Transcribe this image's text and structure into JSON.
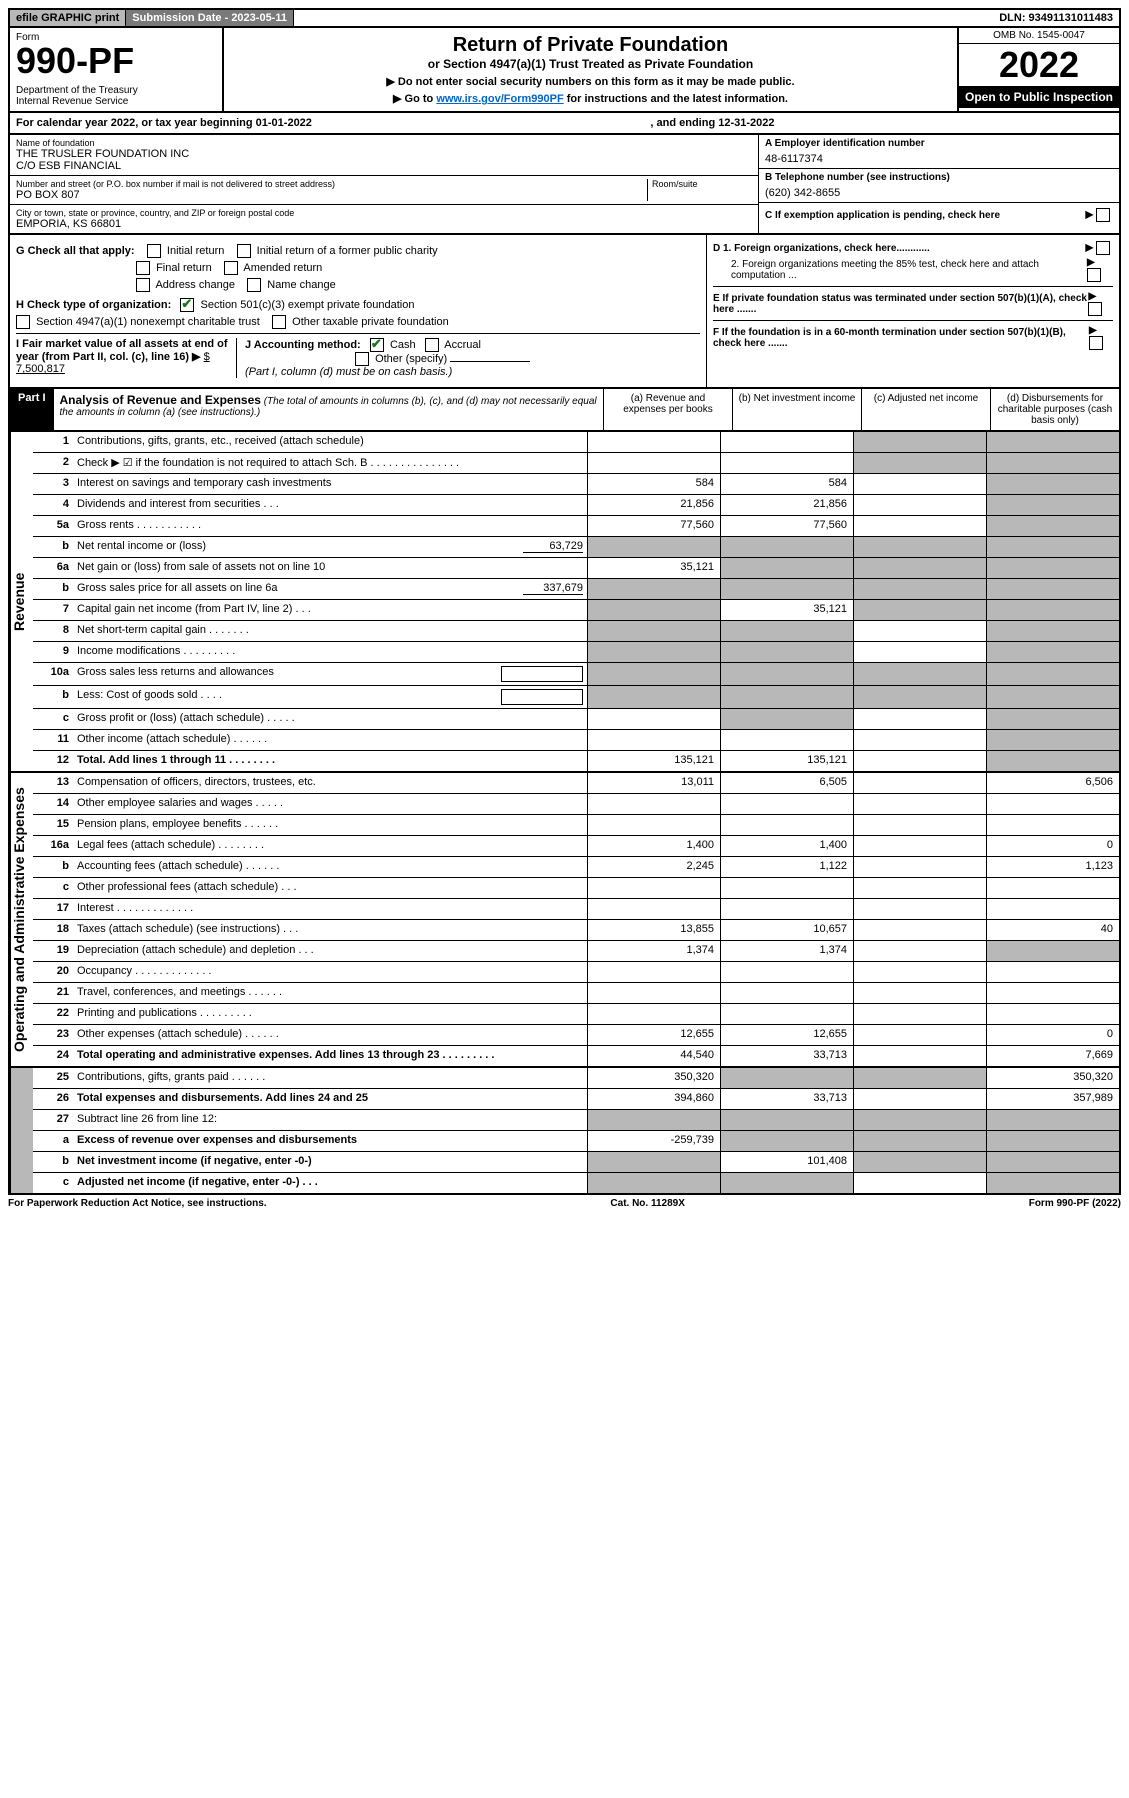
{
  "topbar": {
    "efile": "efile GRAPHIC print",
    "subdate_label": "Submission Date - 2023-05-11",
    "dln": "DLN: 93491131011483"
  },
  "header": {
    "form_label": "Form",
    "form_number": "990-PF",
    "dept": "Department of the Treasury\nInternal Revenue Service",
    "title": "Return of Private Foundation",
    "subtitle": "or Section 4947(a)(1) Trust Treated as Private Foundation",
    "note1": "▶ Do not enter social security numbers on this form as it may be made public.",
    "note2_pre": "▶ Go to ",
    "note2_link": "www.irs.gov/Form990PF",
    "note2_post": " for instructions and the latest information.",
    "omb": "OMB No. 1545-0047",
    "year": "2022",
    "inspection": "Open to Public Inspection"
  },
  "calyear": {
    "label": "For calendar year 2022, or tax year beginning 01-01-2022",
    "ending": ", and ending 12-31-2022"
  },
  "name": {
    "label": "Name of foundation",
    "val1": "THE TRUSLER FOUNDATION INC",
    "val2": "C/O ESB FINANCIAL",
    "addr_label": "Number and street (or P.O. box number if mail is not delivered to street address)",
    "addr_val": "PO BOX 807",
    "room_label": "Room/suite",
    "city_label": "City or town, state or province, country, and ZIP or foreign postal code",
    "city_val": "EMPORIA, KS  66801"
  },
  "right_fields": {
    "a_label": "A Employer identification number",
    "a_val": "48-6117374",
    "b_label": "B Telephone number (see instructions)",
    "b_val": "(620) 342-8655",
    "c_label": "C If exemption application is pending, check here",
    "d1": "D 1. Foreign organizations, check here............",
    "d2": "2. Foreign organizations meeting the 85% test, check here and attach computation ...",
    "e": "E  If private foundation status was terminated under section 507(b)(1)(A), check here .......",
    "f": "F  If the foundation is in a 60-month termination under section 507(b)(1)(B), check here ......."
  },
  "checks": {
    "g_label": "G Check all that apply:",
    "g_opts": [
      "Initial return",
      "Initial return of a former public charity",
      "Final return",
      "Amended return",
      "Address change",
      "Name change"
    ],
    "h_label": "H Check type of organization:",
    "h1": "Section 501(c)(3) exempt private foundation",
    "h2": "Section 4947(a)(1) nonexempt charitable trust",
    "h3": "Other taxable private foundation",
    "i_label": "I Fair market value of all assets at end of year (from Part II, col. (c), line 16) ▶",
    "i_val": "$  7,500,817",
    "j_label": "J Accounting method:",
    "j_cash": "Cash",
    "j_accrual": "Accrual",
    "j_other": "Other (specify)",
    "j_note": "(Part I, column (d) must be on cash basis.)"
  },
  "part1": {
    "label": "Part I",
    "title": "Analysis of Revenue and Expenses",
    "note": " (The total of amounts in columns (b), (c), and (d) may not necessarily equal the amounts in column (a) (see instructions).)",
    "col_a": "(a)    Revenue and expenses per books",
    "col_b": "(b)    Net investment income",
    "col_c": "(c)    Adjusted net income",
    "col_d": "(d)    Disbursements for charitable purposes (cash basis only)"
  },
  "sections": {
    "revenue": "Revenue",
    "expenses": "Operating and Administrative Expenses"
  },
  "lines": [
    {
      "n": "1",
      "d": "Contributions, gifts, grants, etc., received (attach schedule)",
      "a": "",
      "b": "",
      "c": "s",
      "dd": "s"
    },
    {
      "n": "2",
      "d": "Check ▶ ☑ if the foundation is not required to attach Sch. B    .   .   .   .   .   .   .   .   .   .   .   .   .   .   .",
      "a": "",
      "b": "",
      "c": "s",
      "dd": "s"
    },
    {
      "n": "3",
      "d": "Interest on savings and temporary cash investments",
      "a": "584",
      "b": "584",
      "c": "",
      "dd": "s"
    },
    {
      "n": "4",
      "d": "Dividends and interest from securities    .   .   .",
      "a": "21,856",
      "b": "21,856",
      "c": "",
      "dd": "s"
    },
    {
      "n": "5a",
      "d": "Gross rents    .   .   .   .   .   .   .   .   .   .   .",
      "a": "77,560",
      "b": "77,560",
      "c": "",
      "dd": "s"
    },
    {
      "n": "b",
      "d": "Net rental income or (loss)",
      "inline": "63,729",
      "a": "s",
      "b": "s",
      "c": "s",
      "dd": "s"
    },
    {
      "n": "6a",
      "d": "Net gain or (loss) from sale of assets not on line 10",
      "a": "35,121",
      "b": "s",
      "c": "s",
      "dd": "s"
    },
    {
      "n": "b",
      "d": "Gross sales price for all assets on line 6a",
      "inline": "337,679",
      "a": "s",
      "b": "s",
      "c": "s",
      "dd": "s"
    },
    {
      "n": "7",
      "d": "Capital gain net income (from Part IV, line 2)   .   .   .",
      "a": "s",
      "b": "35,121",
      "c": "s",
      "dd": "s"
    },
    {
      "n": "8",
      "d": "Net short-term capital gain   .   .   .   .   .   .   .",
      "a": "s",
      "b": "s",
      "c": "",
      "dd": "s"
    },
    {
      "n": "9",
      "d": "Income modifications   .   .   .   .   .   .   .   .   .",
      "a": "s",
      "b": "s",
      "c": "",
      "dd": "s"
    },
    {
      "n": "10a",
      "d": "Gross sales less returns and allowances",
      "box": true,
      "a": "s",
      "b": "s",
      "c": "s",
      "dd": "s"
    },
    {
      "n": "b",
      "d": "Less: Cost of goods sold    .   .   .   .",
      "box": true,
      "a": "s",
      "b": "s",
      "c": "s",
      "dd": "s"
    },
    {
      "n": "c",
      "d": "Gross profit or (loss) (attach schedule)    .   .   .   .   .",
      "a": "",
      "b": "s",
      "c": "",
      "dd": "s"
    },
    {
      "n": "11",
      "d": "Other income (attach schedule)    .   .   .   .   .   .",
      "a": "",
      "b": "",
      "c": "",
      "dd": "s"
    },
    {
      "n": "12",
      "d": "Total. Add lines 1 through 11    .   .   .   .   .   .   .   .",
      "bold": true,
      "a": "135,121",
      "b": "135,121",
      "c": "",
      "dd": "s"
    },
    {
      "n": "13",
      "d": "Compensation of officers, directors, trustees, etc.",
      "a": "13,011",
      "b": "6,505",
      "c": "",
      "dd": "6,506"
    },
    {
      "n": "14",
      "d": "Other employee salaries and wages    .   .   .   .   .",
      "a": "",
      "b": "",
      "c": "",
      "dd": ""
    },
    {
      "n": "15",
      "d": "Pension plans, employee benefits   .   .   .   .   .   .",
      "a": "",
      "b": "",
      "c": "",
      "dd": ""
    },
    {
      "n": "16a",
      "d": "Legal fees (attach schedule)  .   .   .   .   .   .   .   .",
      "a": "1,400",
      "b": "1,400",
      "c": "",
      "dd": "0"
    },
    {
      "n": "b",
      "d": "Accounting fees (attach schedule)  .   .   .   .   .   .",
      "a": "2,245",
      "b": "1,122",
      "c": "",
      "dd": "1,123"
    },
    {
      "n": "c",
      "d": "Other professional fees (attach schedule)    .   .   .",
      "a": "",
      "b": "",
      "c": "",
      "dd": ""
    },
    {
      "n": "17",
      "d": "Interest   .   .   .   .   .   .   .   .   .   .   .   .   .",
      "a": "",
      "b": "",
      "c": "",
      "dd": ""
    },
    {
      "n": "18",
      "d": "Taxes (attach schedule) (see instructions)    .   .   .",
      "a": "13,855",
      "b": "10,657",
      "c": "",
      "dd": "40"
    },
    {
      "n": "19",
      "d": "Depreciation (attach schedule) and depletion   .   .   .",
      "a": "1,374",
      "b": "1,374",
      "c": "",
      "dd": "s"
    },
    {
      "n": "20",
      "d": "Occupancy  .   .   .   .   .   .   .   .   .   .   .   .   .",
      "a": "",
      "b": "",
      "c": "",
      "dd": ""
    },
    {
      "n": "21",
      "d": "Travel, conferences, and meetings  .   .   .   .   .   .",
      "a": "",
      "b": "",
      "c": "",
      "dd": ""
    },
    {
      "n": "22",
      "d": "Printing and publications  .   .   .   .   .   .   .   .   .",
      "a": "",
      "b": "",
      "c": "",
      "dd": ""
    },
    {
      "n": "23",
      "d": "Other expenses (attach schedule)  .   .   .   .   .   .",
      "a": "12,655",
      "b": "12,655",
      "c": "",
      "dd": "0"
    },
    {
      "n": "24",
      "d": "Total operating and administrative expenses. Add lines 13 through 23   .   .   .   .   .   .   .   .   .",
      "bold": true,
      "a": "44,540",
      "b": "33,713",
      "c": "",
      "dd": "7,669"
    },
    {
      "n": "25",
      "d": "Contributions, gifts, grants paid     .   .   .   .   .   .",
      "a": "350,320",
      "b": "s",
      "c": "s",
      "dd": "350,320"
    },
    {
      "n": "26",
      "d": "Total expenses and disbursements. Add lines 24 and 25",
      "bold": true,
      "a": "394,860",
      "b": "33,713",
      "c": "",
      "dd": "357,989"
    },
    {
      "n": "27",
      "d": "Subtract line 26 from line 12:",
      "a": "s",
      "b": "s",
      "c": "s",
      "dd": "s"
    },
    {
      "n": "a",
      "d": "Excess of revenue over expenses and disbursements",
      "bold": true,
      "a": "-259,739",
      "b": "s",
      "c": "s",
      "dd": "s"
    },
    {
      "n": "b",
      "d": "Net investment income (if negative, enter -0-)",
      "bold": true,
      "a": "s",
      "b": "101,408",
      "c": "s",
      "dd": "s"
    },
    {
      "n": "c",
      "d": "Adjusted net income (if negative, enter -0-)   .   .   .",
      "bold": true,
      "a": "s",
      "b": "s",
      "c": "",
      "dd": "s"
    }
  ],
  "footer": {
    "left": "For Paperwork Reduction Act Notice, see instructions.",
    "mid": "Cat. No. 11289X",
    "right": "Form 990-PF (2022)"
  }
}
